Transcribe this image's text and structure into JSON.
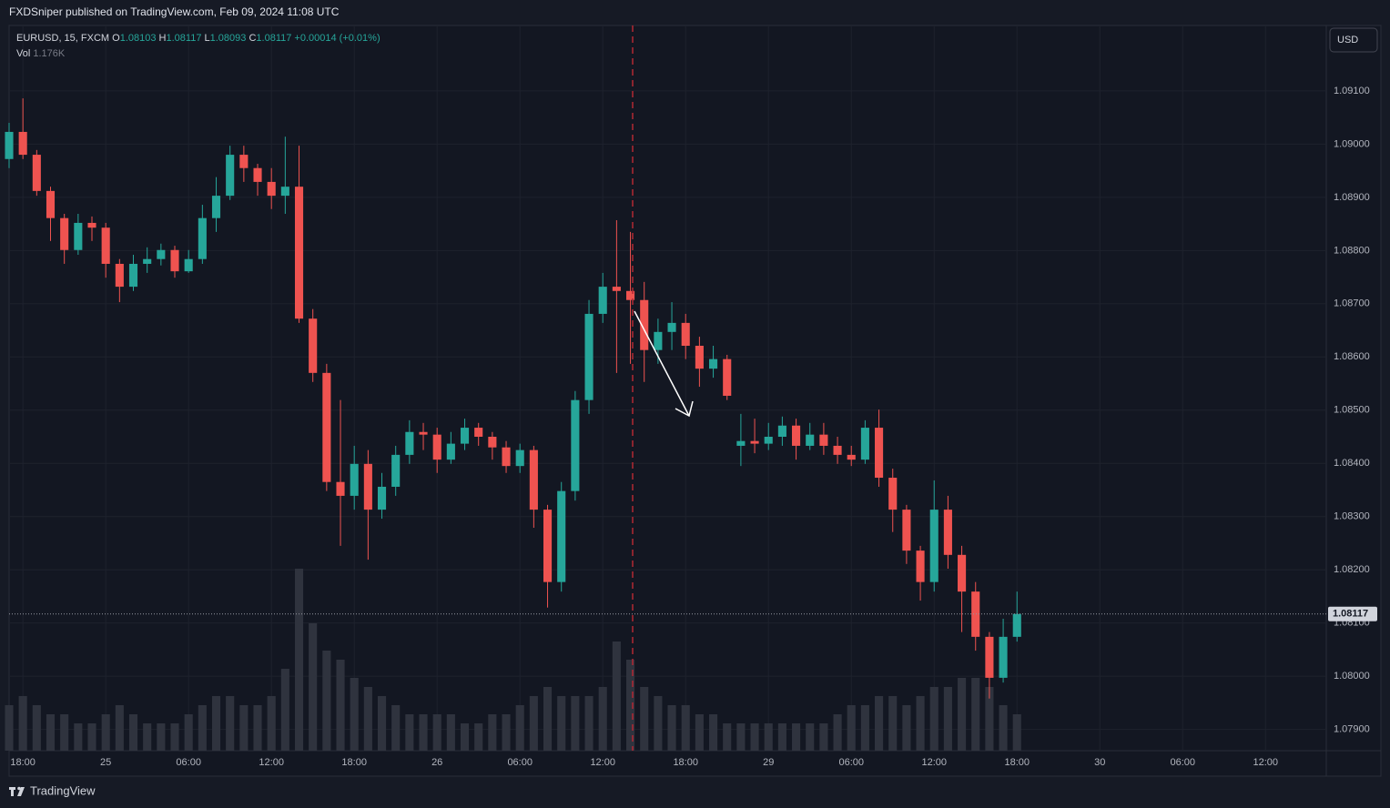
{
  "header": "FXDSniper published on TradingView.com, Feb 09, 2024 11:08 UTC",
  "legend": {
    "symbol": "EURUSD, 15, FXCM",
    "open_label": "O",
    "open": 1.08103,
    "high_label": "H",
    "high": 1.08117,
    "low_label": "L",
    "low": 1.08093,
    "close_label": "C",
    "close": 1.08117,
    "change": "+0.00014 (+0.01%)",
    "volume_label": "Vol",
    "volume": "1.176K"
  },
  "currency": "USD",
  "footer": "TradingView",
  "chart_data": {
    "type": "candlestick",
    "up_color": "#26a69a",
    "down_color": "#ef5350",
    "volume_color": "#2f333e",
    "grid": true,
    "x": [
      -1,
      0,
      1,
      2,
      3,
      4,
      5,
      6,
      7,
      8,
      9,
      10,
      11,
      12,
      13,
      14,
      15,
      16,
      17,
      18,
      19,
      20,
      21,
      22,
      23,
      24,
      25,
      26,
      27,
      28,
      29,
      30,
      31,
      32,
      33,
      34,
      35,
      36,
      37,
      38,
      39,
      40,
      41,
      42,
      43,
      44,
      45,
      46,
      47,
      48,
      49,
      50,
      51,
      52,
      53,
      54,
      55,
      56,
      57,
      58,
      59,
      60,
      61,
      62,
      63,
      64,
      65,
      66,
      67,
      68,
      69,
      70,
      71,
      72
    ],
    "open": [
      1.08972,
      1.09023,
      1.0898,
      1.08912,
      1.08861,
      1.08801,
      1.08852,
      1.08843,
      1.08775,
      1.08732,
      1.08775,
      1.08784,
      1.08801,
      1.08761,
      1.08784,
      1.08861,
      1.08903,
      1.0898,
      1.08955,
      1.08929,
      1.08903,
      1.0892,
      1.08672,
      1.0857,
      1.08365,
      1.08339,
      1.08399,
      1.08313,
      1.08356,
      1.08416,
      1.08459,
      1.08454,
      1.08407,
      1.08437,
      1.08467,
      1.0845,
      1.0843,
      1.08395,
      1.08425,
      1.08313,
      1.08177,
      1.08348,
      1.08519,
      1.08681,
      1.08732,
      1.08724,
      1.08707,
      1.08613,
      1.08647,
      1.08664,
      1.08621,
      1.08578,
      1.08596,
      1.08433,
      1.08442,
      1.08437,
      1.0845,
      1.08471,
      1.08433,
      1.08454,
      1.08433,
      1.08416,
      1.08407,
      1.08467,
      1.08373,
      1.08313,
      1.08236,
      1.08177,
      1.08313,
      1.08228,
      1.08159,
      1.08074,
      1.07997,
      1.08074
    ],
    "high": [
      1.0904,
      1.09086,
      1.08989,
      1.0892,
      1.08869,
      1.08869,
      1.08864,
      1.08852,
      1.08784,
      1.08792,
      1.08806,
      1.08813,
      1.08809,
      1.08801,
      1.08886,
      1.08938,
      1.08997,
      1.08997,
      1.08963,
      1.08955,
      1.09014,
      1.08997,
      1.0869,
      1.08587,
      1.08519,
      1.08433,
      1.08425,
      1.08382,
      1.08433,
      1.08481,
      1.08476,
      1.08467,
      1.08459,
      1.08484,
      1.08476,
      1.08459,
      1.08442,
      1.08437,
      1.08433,
      1.08322,
      1.08365,
      1.08536,
      1.08707,
      1.08758,
      1.08857,
      1.08835,
      1.08741,
      1.08672,
      1.08703,
      1.08681,
      1.08638,
      1.08621,
      1.08604,
      1.08493,
      1.08484,
      1.08476,
      1.08488,
      1.08484,
      1.08476,
      1.08476,
      1.0845,
      1.08433,
      1.08481,
      1.08501,
      1.0839,
      1.08322,
      1.08245,
      1.08368,
      1.08339,
      1.08245,
      1.08177,
      1.08083,
      1.08108,
      1.08159
    ],
    "low": [
      1.08955,
      1.08972,
      1.08903,
      1.08818,
      1.08775,
      1.08792,
      1.08818,
      1.08749,
      1.08703,
      1.08724,
      1.08758,
      1.08772,
      1.08749,
      1.08758,
      1.08775,
      1.08835,
      1.08895,
      1.08929,
      1.08903,
      1.08878,
      1.08869,
      1.08664,
      1.08553,
      1.08348,
      1.08245,
      1.08313,
      1.08219,
      1.08296,
      1.08339,
      1.08399,
      1.08425,
      1.08382,
      1.08399,
      1.08425,
      1.08433,
      1.08407,
      1.08382,
      1.08382,
      1.08279,
      1.08129,
      1.08159,
      1.0833,
      1.08493,
      1.08664,
      1.0857,
      1.08587,
      1.08553,
      1.08587,
      1.08613,
      1.08596,
      1.08544,
      1.08561,
      1.08519,
      1.08395,
      1.08419,
      1.08425,
      1.08433,
      1.08407,
      1.08425,
      1.08416,
      1.08399,
      1.08395,
      1.08399,
      1.08356,
      1.08271,
      1.08211,
      1.08142,
      1.08159,
      1.08202,
      1.08083,
      1.08048,
      1.07958,
      1.07988,
      1.08065
    ],
    "close": [
      1.09023,
      1.0898,
      1.08912,
      1.08861,
      1.08801,
      1.08852,
      1.08843,
      1.08775,
      1.08732,
      1.08775,
      1.08784,
      1.08801,
      1.08761,
      1.08784,
      1.08861,
      1.08903,
      1.0898,
      1.08955,
      1.08929,
      1.08903,
      1.0892,
      1.08672,
      1.0857,
      1.08365,
      1.08339,
      1.08399,
      1.08313,
      1.08356,
      1.08416,
      1.08459,
      1.08454,
      1.08407,
      1.08437,
      1.08467,
      1.0845,
      1.0843,
      1.08395,
      1.08425,
      1.08313,
      1.08177,
      1.08348,
      1.08519,
      1.08681,
      1.08732,
      1.08724,
      1.08707,
      1.08613,
      1.08647,
      1.08664,
      1.08621,
      1.08578,
      1.08596,
      1.08527,
      1.08442,
      1.08437,
      1.0845,
      1.08471,
      1.08433,
      1.08454,
      1.08433,
      1.08416,
      1.08407,
      1.08467,
      1.08373,
      1.08313,
      1.08236,
      1.08177,
      1.08313,
      1.08228,
      1.08159,
      1.08074,
      1.07997,
      1.08074,
      1.08117
    ],
    "volume": [
      5,
      6,
      5,
      4,
      4,
      3,
      3,
      4,
      5,
      4,
      3,
      3,
      3,
      4,
      5,
      6,
      6,
      5,
      5,
      6,
      9,
      20,
      14,
      11,
      10,
      8,
      7,
      6,
      5,
      4,
      4,
      4,
      4,
      3,
      3,
      4,
      4,
      5,
      6,
      7,
      6,
      6,
      6,
      7,
      12,
      10,
      7,
      6,
      5,
      5,
      4,
      4,
      3,
      3,
      3,
      3,
      3,
      3,
      3,
      3,
      4,
      5,
      5,
      6,
      6,
      5,
      6,
      7,
      7,
      8,
      8,
      7,
      5,
      4
    ],
    "xlim": [
      -1,
      94.4
    ],
    "ylim": [
      1.0786,
      1.09223
    ],
    "xticks": [
      {
        "value": 0,
        "label": "18:00"
      },
      {
        "value": 6,
        "label": "25"
      },
      {
        "value": 12,
        "label": "06:00"
      },
      {
        "value": 18,
        "label": "12:00"
      },
      {
        "value": 24,
        "label": "18:00"
      },
      {
        "value": 30,
        "label": "26"
      },
      {
        "value": 36,
        "label": "06:00"
      },
      {
        "value": 42,
        "label": "12:00"
      },
      {
        "value": 48,
        "label": "18:00"
      },
      {
        "value": 54,
        "label": "29"
      },
      {
        "value": 60,
        "label": "06:00"
      },
      {
        "value": 66,
        "label": "12:00"
      },
      {
        "value": 72,
        "label": "18:00"
      },
      {
        "value": 78,
        "label": "30"
      },
      {
        "value": 84,
        "label": "06:00"
      },
      {
        "value": 90,
        "label": "12:00"
      }
    ],
    "yticks": [
      {
        "value": 1.079,
        "label": "1.07900"
      },
      {
        "value": 1.08,
        "label": "1.08000"
      },
      {
        "value": 1.081,
        "label": "1.08100"
      },
      {
        "value": 1.082,
        "label": "1.08200"
      },
      {
        "value": 1.083,
        "label": "1.08300"
      },
      {
        "value": 1.084,
        "label": "1.08400"
      },
      {
        "value": 1.085,
        "label": "1.08500"
      },
      {
        "value": 1.086,
        "label": "1.08600"
      },
      {
        "value": 1.087,
        "label": "1.08700"
      },
      {
        "value": 1.088,
        "label": "1.08800"
      },
      {
        "value": 1.089,
        "label": "1.08900"
      },
      {
        "value": 1.09,
        "label": "1.09000"
      },
      {
        "value": 1.091,
        "label": "1.09100"
      }
    ]
  }
}
